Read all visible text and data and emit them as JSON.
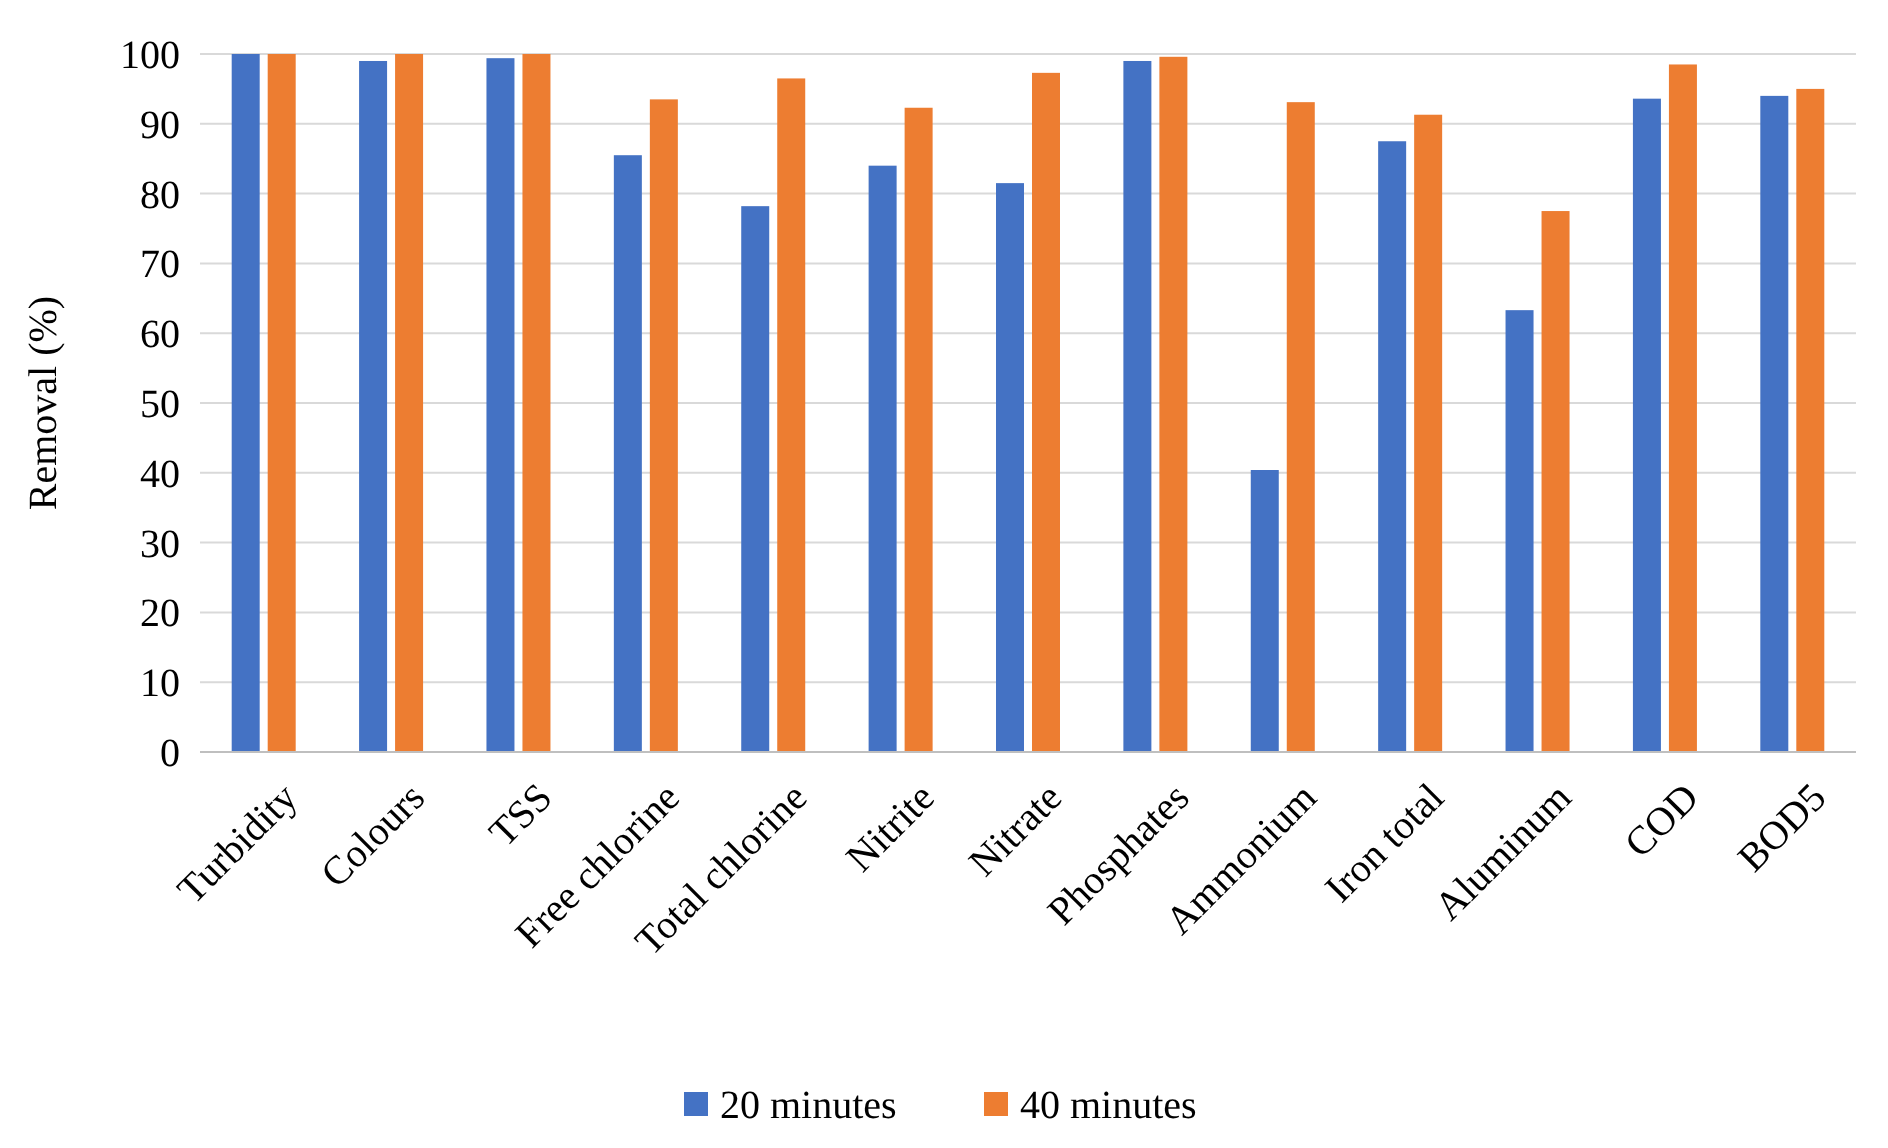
{
  "chart_data": {
    "type": "bar",
    "ylabel": "Removal (%)",
    "categories": [
      "Turbidity",
      "Colours",
      "TSS",
      "Free chlorine",
      "Total chlorine",
      "Nitrite",
      "Nitrate",
      "Phosphates",
      "Ammonium",
      "Iron total",
      "Aluminum",
      "COD",
      "BOD5"
    ],
    "series": [
      {
        "name": "20 minutes",
        "color": "#4472c4",
        "values": [
          100,
          99,
          99.4,
          85.5,
          78.2,
          84,
          81.5,
          99,
          40.4,
          87.5,
          63.3,
          93.6,
          94
        ]
      },
      {
        "name": "40 minutes",
        "color": "#ed7d31",
        "values": [
          100,
          100,
          100,
          93.5,
          96.5,
          92.3,
          97.3,
          99.6,
          93.1,
          91.3,
          77.5,
          98.5,
          95
        ]
      }
    ],
    "ylim": [
      0,
      100
    ],
    "yticks": [
      0,
      10,
      20,
      30,
      40,
      50,
      60,
      70,
      80,
      90,
      100
    ],
    "grid": "y",
    "legend": "bottom"
  }
}
